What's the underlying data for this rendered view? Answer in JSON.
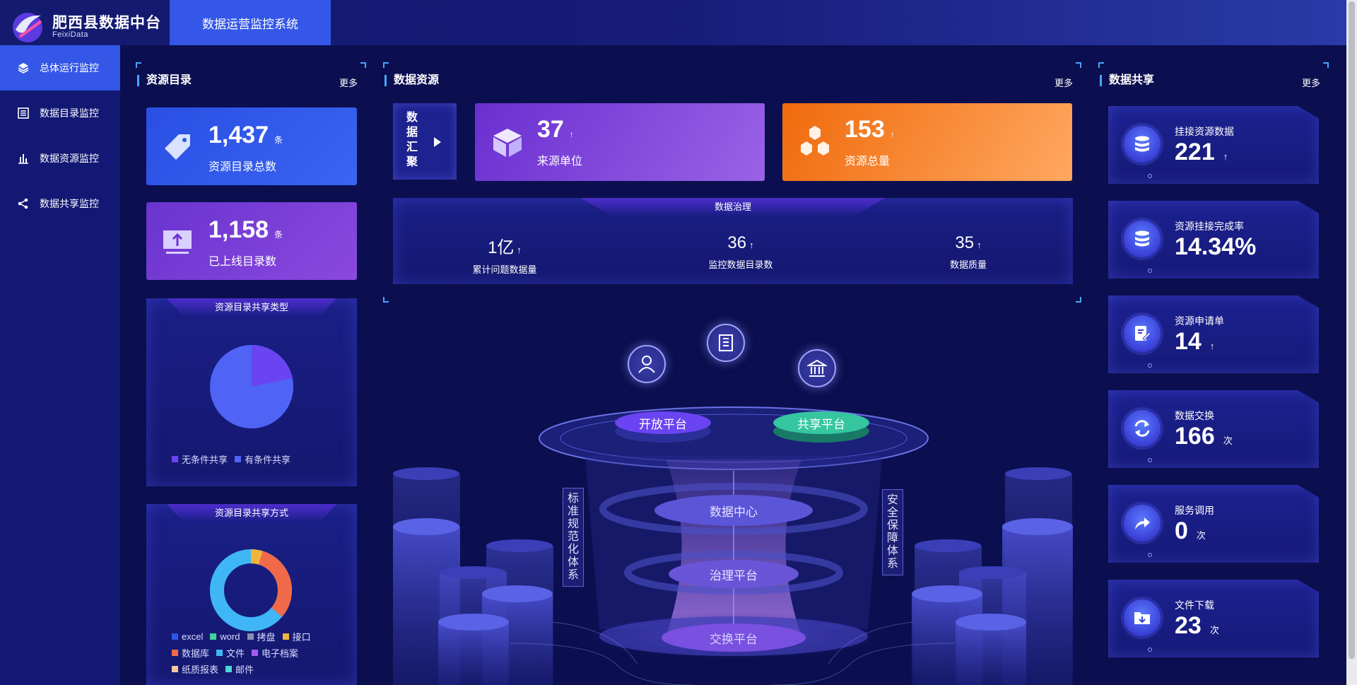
{
  "header": {
    "brand_title": "肥西县数据中台",
    "brand_sub": "FeixiData",
    "system_tab": "数据运营监控系统"
  },
  "sidebar": {
    "items": [
      {
        "label": "总体运行监控",
        "icon": "layers-icon",
        "active": true
      },
      {
        "label": "数据目录监控",
        "icon": "list-icon",
        "active": false
      },
      {
        "label": "数据资源监控",
        "icon": "bar-chart-icon",
        "active": false
      },
      {
        "label": "数据共享监控",
        "icon": "share-icon",
        "active": false
      }
    ]
  },
  "catalog": {
    "title": "资源目录",
    "more": "更多",
    "total": {
      "value": "1,437",
      "unit": "条",
      "label": "资源目录总数"
    },
    "online": {
      "value": "1,158",
      "unit": "条",
      "label": "已上线目录数"
    },
    "share_type": {
      "title": "资源目录共享类型",
      "legend": [
        "无条件共享",
        "有条件共享"
      ]
    },
    "share_mode": {
      "title": "资源目录共享方式",
      "legend": [
        "excel",
        "word",
        "拷盘",
        "接口",
        "数据库",
        "文件",
        "电子档案",
        "纸质报表",
        "邮件"
      ]
    }
  },
  "resources": {
    "title": "数据资源",
    "more": "更多",
    "aggregate_label": "数据汇聚",
    "sources": {
      "value": "37",
      "arrow": "↑",
      "label": "来源单位"
    },
    "total": {
      "value": "153",
      "arrow": "↑",
      "label": "资源总量"
    },
    "governance": {
      "title": "数据治理",
      "metrics": [
        {
          "value": "1亿",
          "arrow": "↑",
          "label": "累计问题数据量"
        },
        {
          "value": "36",
          "arrow": "↑",
          "label": "监控数据目录数"
        },
        {
          "value": "35",
          "arrow": "↑",
          "label": "数据质量"
        }
      ]
    }
  },
  "illustration": {
    "open_platform": "开放平台",
    "share_platform": "共享平台",
    "data_center": "数据中心",
    "governance_platform": "治理平台",
    "exchange_platform": "交换平台",
    "left_system": "标准规范化体系",
    "right_system": "安全保障体系"
  },
  "sharing": {
    "title": "数据共享",
    "more": "更多",
    "cards": [
      {
        "label": "挂接资源数据",
        "value": "221",
        "unit": "↑",
        "icon": "database-icon"
      },
      {
        "label": "资源挂接完成率",
        "value": "14.34%",
        "unit": "",
        "icon": "database-icon"
      },
      {
        "label": "资源申请单",
        "value": "14",
        "unit": "↑",
        "icon": "edit-doc-icon"
      },
      {
        "label": "数据交换",
        "value": "166",
        "unit": "次",
        "icon": "exchange-icon"
      },
      {
        "label": "服务调用",
        "value": "0",
        "unit": "次",
        "icon": "forward-icon"
      },
      {
        "label": "文件下载",
        "value": "23",
        "unit": "次",
        "icon": "folder-download-icon"
      }
    ]
  },
  "colors": {
    "accent": "#3557e8",
    "card_blue": "#2f55e6",
    "card_purple": "#7a3fd6",
    "card_violet": "#7b3fe0",
    "card_orange": "#f57a1a",
    "corner": "#46a6ff"
  }
}
